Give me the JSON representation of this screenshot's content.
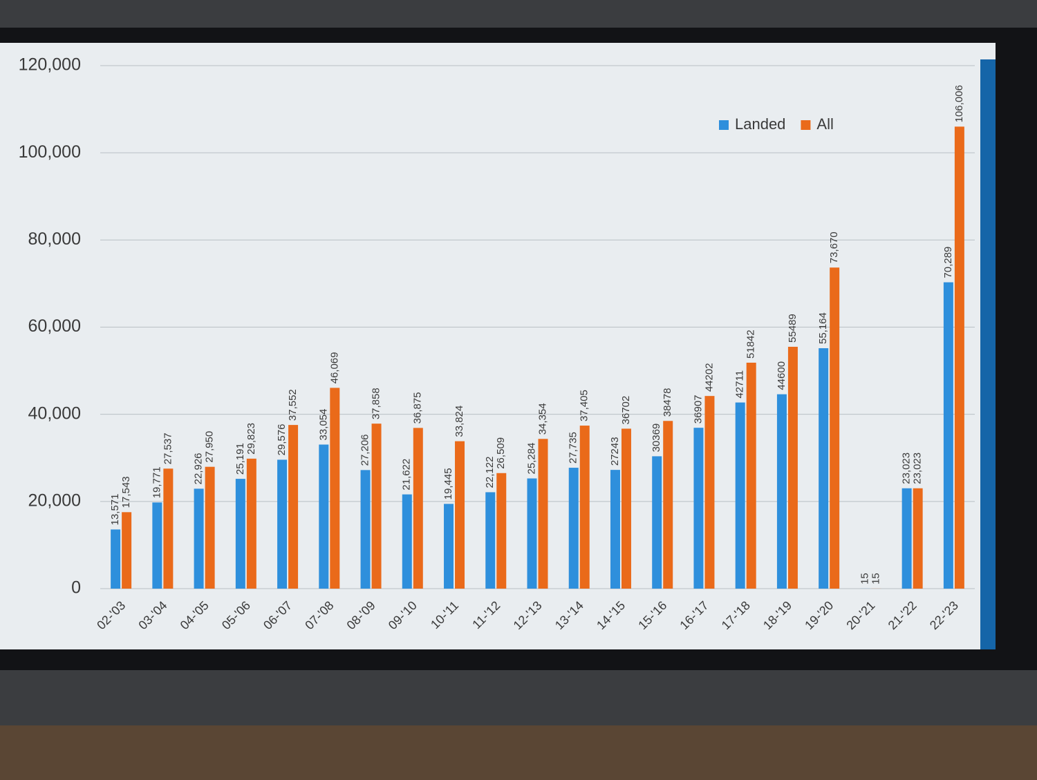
{
  "chart_data": {
    "type": "bar",
    "categories": [
      "02-'03",
      "03-'04",
      "04-'05",
      "05-'06",
      "06-'07",
      "07-'08",
      "08-'09",
      "09-'10",
      "10-'11",
      "11-'12",
      "12-'13",
      "13-'14",
      "14-'15",
      "15-'16",
      "16-'17",
      "17-'18",
      "18-'19",
      "19-'20",
      "20-'21",
      "21-'22",
      "22-'23"
    ],
    "series": [
      {
        "name": "Landed",
        "color": "#2e8fdc",
        "values": [
          13571,
          19771,
          22926,
          25191,
          29576,
          33054,
          27206,
          21622,
          19445,
          22122,
          25284,
          27735,
          27243,
          30369,
          36907,
          42711,
          44600,
          55164,
          15,
          23023,
          70289
        ],
        "value_labels": [
          "13,571",
          "19,771",
          "22,926",
          "25,191",
          "29,576",
          "33,054",
          "27,206",
          "21,622",
          "19,445",
          "22,122",
          "25,284",
          "27,735",
          "27243",
          "30369",
          "36907",
          "42711",
          "44600",
          "55,164",
          "15",
          "23,023",
          "70,289"
        ]
      },
      {
        "name": "All",
        "color": "#ea6a1a",
        "values": [
          17543,
          27537,
          27950,
          29823,
          37552,
          46069,
          37858,
          36875,
          33824,
          26509,
          34354,
          37405,
          36702,
          38478,
          44202,
          51842,
          55489,
          73670,
          15,
          23023,
          106006
        ],
        "value_labels": [
          "17,543",
          "27,537",
          "27,950",
          "29,823",
          "37,552",
          "46,069",
          "37,858",
          "36,875",
          "33,824",
          "26,509",
          "34,354",
          "37,405",
          "36702",
          "38478",
          "44202",
          "51842",
          "55489",
          "73,670",
          "15",
          "23,023",
          "106,006"
        ]
      }
    ],
    "ylim": [
      0,
      120000
    ],
    "yticks": [
      0,
      {
        "value": 20000,
        "label": "20,000"
      },
      {
        "value": 40000,
        "label": "40,000"
      },
      {
        "value": 60000,
        "label": "60,000"
      },
      {
        "value": 80000,
        "label": "80,000"
      },
      {
        "value": 100000,
        "label": "100,000"
      },
      {
        "value": 120000,
        "label": "120,000"
      }
    ],
    "grid": true,
    "legend": "top-right"
  }
}
